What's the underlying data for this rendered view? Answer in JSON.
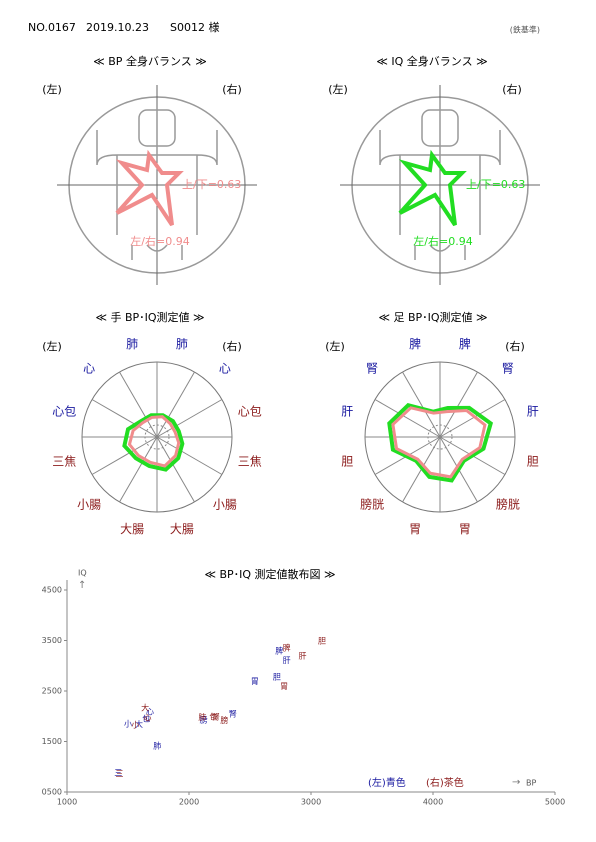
{
  "header": {
    "no": "NO.0167",
    "date": "2019.10.23",
    "patient": "S0012 様",
    "note": "(鉄基準)"
  },
  "balance": [
    {
      "title": "≪ BP 全身バランス ≫",
      "left": "(左)",
      "right": "(右)",
      "ratio_ud": "上/下=0.63",
      "ratio_lr": "左/右=0.94",
      "color": "#f08c8c"
    },
    {
      "title": "≪ IQ 全身バランス ≫",
      "left": "(左)",
      "right": "(右)",
      "ratio_ud": "上/下=0.63",
      "ratio_lr": "左/右=0.94",
      "color": "#22dd22"
    }
  ],
  "chart_data": [
    {
      "type": "radar",
      "title": "≪ 手 BP･IQ測定値 ≫",
      "left": "(左)",
      "right": "(右)",
      "categories": [
        "肺",
        "心",
        "心包",
        "三焦",
        "小腸",
        "大腸",
        "大腸",
        "小腸",
        "三焦",
        "心包",
        "心",
        "肺"
      ],
      "category_colors": [
        "#1a1aa0",
        "#1a1aa0",
        "#8b1a1a",
        "#8b1a1a",
        "#8b1a1a",
        "#8b1a1a",
        "#8b1a1a",
        "#8b1a1a",
        "#8b1a1a",
        "#1a1aa0",
        "#1a1aa0",
        "#1a1aa0"
      ],
      "rlim": [
        0,
        1
      ],
      "series": [
        {
          "color": "#22dd22",
          "values": [
            0.3,
            0.3,
            0.3,
            0.35,
            0.4,
            0.45,
            0.4,
            0.4,
            0.45,
            0.4,
            0.3,
            0.3
          ]
        },
        {
          "color": "#f08c8c",
          "values": [
            0.28,
            0.25,
            0.25,
            0.3,
            0.35,
            0.4,
            0.35,
            0.35,
            0.38,
            0.33,
            0.27,
            0.27
          ]
        }
      ]
    },
    {
      "type": "radar",
      "title": "≪ 足 BP･IQ測定値 ≫",
      "left": "(左)",
      "right": "(右)",
      "categories": [
        "脾",
        "腎",
        "肝",
        "胆",
        "膀胱",
        "胃",
        "胃",
        "膀胱",
        "胆",
        "肝",
        "腎",
        "脾"
      ],
      "category_colors": [
        "#1a1aa0",
        "#1a1aa0",
        "#1a1aa0",
        "#8b1a1a",
        "#8b1a1a",
        "#8b1a1a",
        "#8b1a1a",
        "#8b1a1a",
        "#8b1a1a",
        "#1a1aa0",
        "#1a1aa0",
        "#1a1aa0"
      ],
      "rlim": [
        0,
        1
      ],
      "series": [
        {
          "color": "#22dd22",
          "values": [
            0.4,
            0.55,
            0.7,
            0.6,
            0.45,
            0.6,
            0.55,
            0.45,
            0.65,
            0.7,
            0.6,
            0.35
          ]
        },
        {
          "color": "#f08c8c",
          "values": [
            0.35,
            0.5,
            0.62,
            0.55,
            0.42,
            0.55,
            0.5,
            0.42,
            0.6,
            0.65,
            0.55,
            0.33
          ]
        }
      ]
    },
    {
      "type": "scatter",
      "title": "≪ BP･IQ 測定値散布図 ≫",
      "x_label": "BP",
      "y_label": "IQ",
      "xlim": [
        1000,
        5000
      ],
      "xticks": [
        1000,
        2000,
        3000,
        4000,
        5000
      ],
      "ylim": [
        500,
        4500
      ],
      "yticks": [
        {
          "value": 500,
          "label": "0500"
        },
        1500,
        2500,
        3500,
        4500
      ],
      "series": [
        {
          "name": "(左)青色",
          "color": "#1a1aa0",
          "labels": [
            "肺",
            "心",
            "小",
            "大",
            "三",
            "包",
            "脾",
            "肝",
            "胆",
            "胃",
            "腎",
            "膀"
          ],
          "x": [
            1740,
            1680,
            1500,
            1590,
            1420,
            1650,
            2740,
            2800,
            2720,
            2540,
            2360,
            2120
          ],
          "y": [
            1410,
            2080,
            1850,
            1840,
            880,
            1950,
            3290,
            3100,
            2780,
            2690,
            2040,
            1930
          ]
        },
        {
          "name": "(右)茶色",
          "color": "#8b1a1a",
          "labels": [
            "大",
            "心",
            "小",
            "三",
            "肺",
            "包",
            "胆",
            "脾",
            "肝",
            "胃",
            "腎",
            "膀"
          ],
          "x": [
            1640,
            1660,
            1560,
            1430,
            2110,
            2200,
            3090,
            2800,
            2930,
            2780,
            2220,
            2290
          ],
          "y": [
            2160,
            1970,
            1830,
            860,
            1980,
            1990,
            3490,
            3350,
            3190,
            2590,
            1990,
            1920
          ]
        }
      ]
    }
  ]
}
